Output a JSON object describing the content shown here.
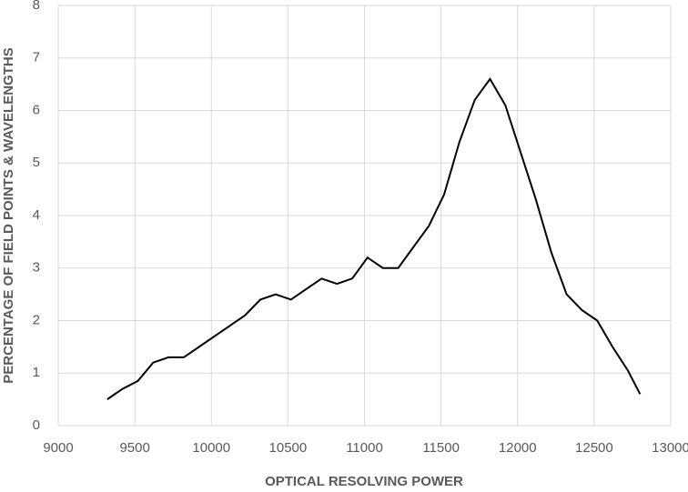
{
  "chart_data": {
    "type": "line",
    "xlabel": "OPTICAL RESOLVING POWER",
    "ylabel": "PERCENTAGE OF FIELD POINTS & WAVELENGTHS",
    "x": [
      9320,
      9420,
      9520,
      9620,
      9720,
      9820,
      9920,
      10020,
      10120,
      10220,
      10320,
      10420,
      10520,
      10620,
      10720,
      10820,
      10920,
      11020,
      11120,
      11220,
      11320,
      11420,
      11520,
      11620,
      11720,
      11820,
      11920,
      12020,
      12120,
      12220,
      12320,
      12420,
      12520,
      12620,
      12720,
      12800
    ],
    "series": [
      {
        "color": "#000000",
        "values": [
          0.5,
          0.7,
          0.85,
          1.2,
          1.3,
          1.3,
          1.5,
          1.7,
          1.9,
          2.1,
          2.4,
          2.5,
          2.4,
          2.6,
          2.8,
          2.7,
          2.8,
          3.2,
          3.0,
          3.0,
          3.4,
          3.8,
          4.4,
          5.4,
          6.2,
          6.6,
          6.1,
          5.2,
          4.3,
          3.3,
          2.5,
          2.2,
          2.0,
          1.5,
          1.05,
          0.6
        ]
      }
    ],
    "xlim": [
      9000,
      13000
    ],
    "xticks": [
      9000,
      9500,
      10000,
      10500,
      11000,
      11500,
      12000,
      12500,
      13000
    ],
    "ylim": [
      0,
      8
    ],
    "yticks": [
      0,
      1,
      2,
      3,
      4,
      5,
      6,
      7,
      8
    ],
    "grid": true
  }
}
